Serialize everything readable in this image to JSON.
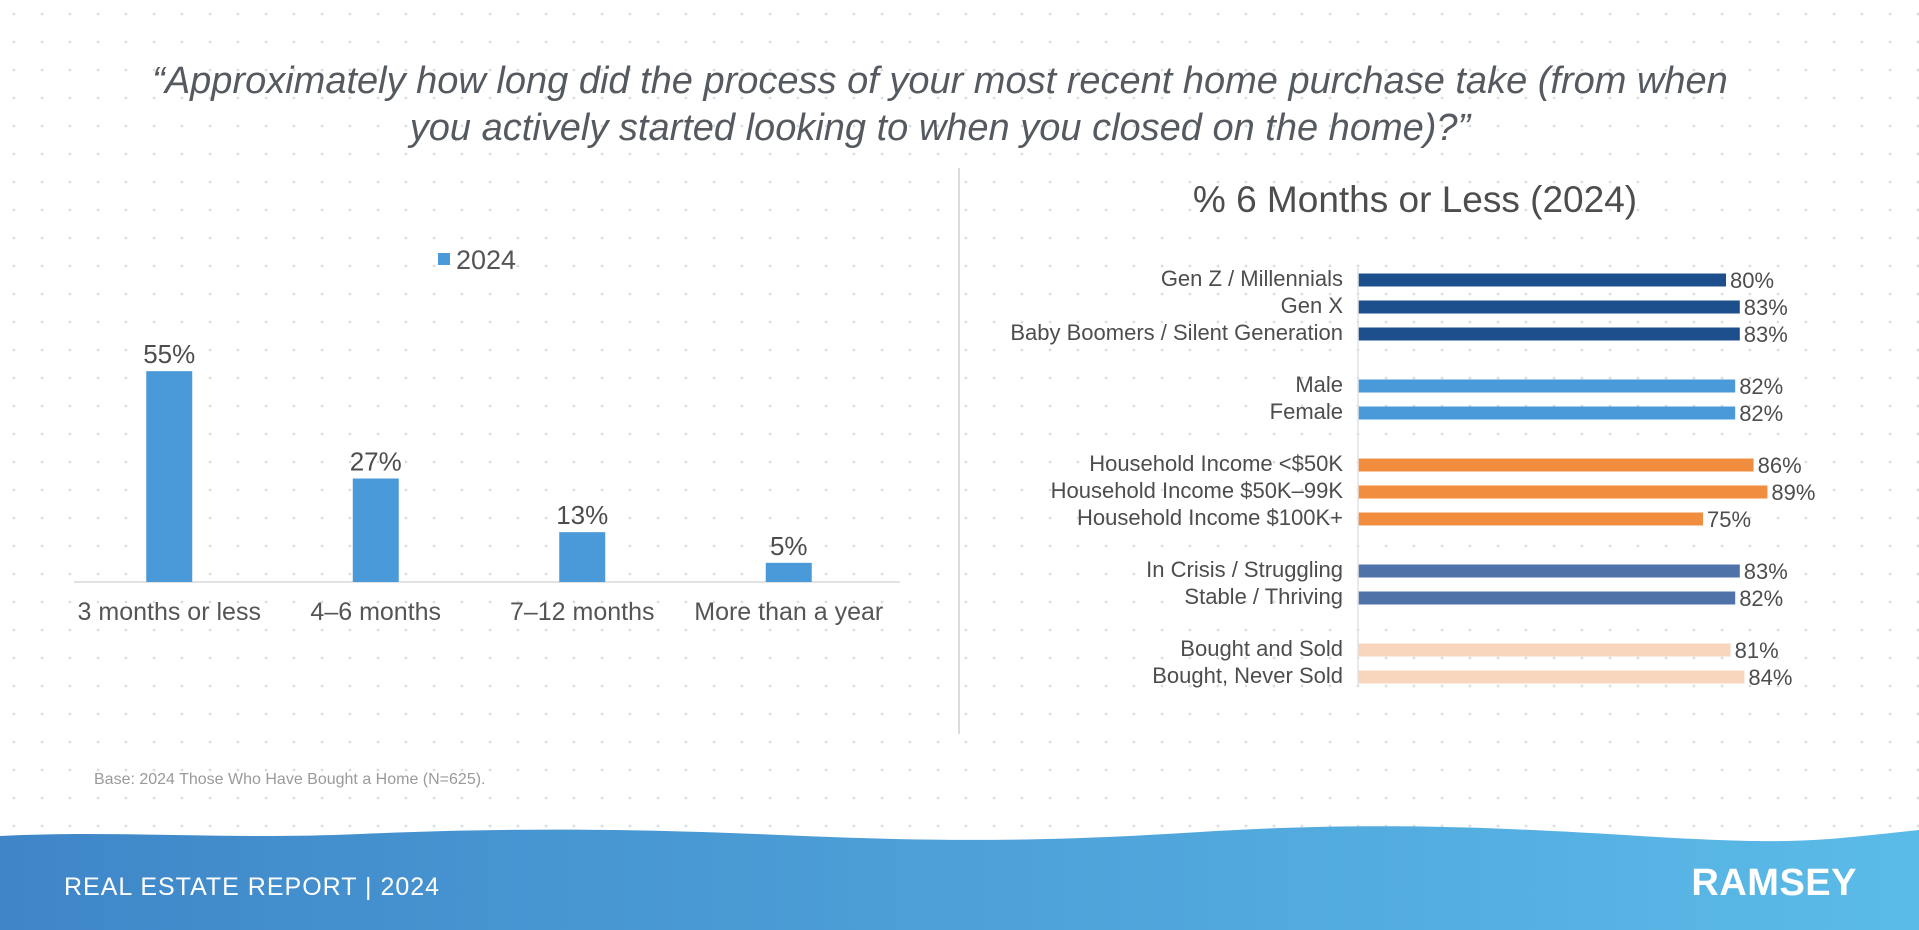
{
  "question": "“Approximately how long did the process of your most recent home purchase take (from when you actively started looking to when you closed on the home)?”",
  "chart_data": [
    {
      "type": "bar",
      "categories": [
        "3 months or less",
        "4–6 months",
        "7–12 months",
        "More than a year"
      ],
      "series": [
        {
          "name": "2024",
          "values": [
            55,
            27,
            13,
            5
          ],
          "color": "#4a9ad9"
        }
      ],
      "data_labels": [
        "55%",
        "27%",
        "13%",
        "5%"
      ],
      "ylim": [
        0,
        60
      ],
      "legend": "top-center",
      "grid": false
    },
    {
      "type": "bar",
      "orientation": "horizontal",
      "title": "% 6 Months or Less (2024)",
      "groups": [
        {
          "color": "#1d4f8c",
          "items": [
            {
              "label": "Gen Z / Millennials",
              "value": 80,
              "value_label": "80%"
            },
            {
              "label": "Gen X",
              "value": 83,
              "value_label": "83%"
            },
            {
              "label": "Baby Boomers / Silent Generation",
              "value": 83,
              "value_label": "83%"
            }
          ]
        },
        {
          "color": "#4a9ad9",
          "items": [
            {
              "label": "Male",
              "value": 82,
              "value_label": "82%"
            },
            {
              "label": "Female",
              "value": 82,
              "value_label": "82%"
            }
          ]
        },
        {
          "color": "#f18d3e",
          "items": [
            {
              "label": "Household Income <$50K",
              "value": 86,
              "value_label": "86%"
            },
            {
              "label": "Household Income $50K–99K",
              "value": 89,
              "value_label": "89%"
            },
            {
              "label": "Household Income $100K+",
              "value": 75,
              "value_label": "75%"
            }
          ]
        },
        {
          "color": "#4f73a8",
          "items": [
            {
              "label": "In Crisis / Struggling",
              "value": 83,
              "value_label": "83%"
            },
            {
              "label": "Stable / Thriving",
              "value": 82,
              "value_label": "82%"
            }
          ]
        },
        {
          "color": "#f8d5bd",
          "items": [
            {
              "label": "Bought and Sold",
              "value": 81,
              "value_label": "81%"
            },
            {
              "label": "Bought, Never Sold",
              "value": 84,
              "value_label": "84%"
            }
          ]
        }
      ],
      "xlim": [
        0,
        100
      ],
      "grid": false
    }
  ],
  "base_note": "Base: 2024 Those Who Have Bought a Home (N=625).",
  "footer": {
    "label": "REAL ESTATE REPORT | 2024",
    "brand": "RAMSEY"
  },
  "colors": {
    "footer_start": "#3f86c8",
    "footer_end": "#5bbbe8"
  }
}
